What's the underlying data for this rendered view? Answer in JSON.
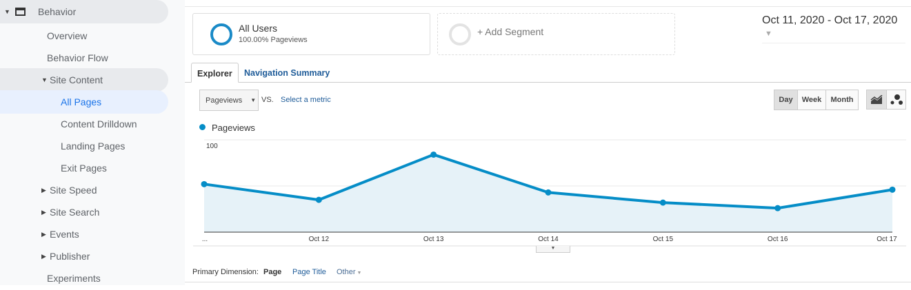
{
  "sidebar": {
    "section": "Behavior",
    "items": [
      {
        "label": "Overview"
      },
      {
        "label": "Behavior Flow"
      },
      {
        "label": "Site Content"
      },
      {
        "label": "All Pages"
      },
      {
        "label": "Content Drilldown"
      },
      {
        "label": "Landing Pages"
      },
      {
        "label": "Exit Pages"
      },
      {
        "label": "Site Speed"
      },
      {
        "label": "Site Search"
      },
      {
        "label": "Events"
      },
      {
        "label": "Publisher"
      },
      {
        "label": "Experiments"
      }
    ]
  },
  "segments": {
    "all_users": "All Users",
    "all_users_sub": "100.00% Pageviews",
    "add": "+ Add Segment"
  },
  "date_range": "Oct 11, 2020 - Oct 17, 2020",
  "tabs": [
    "Explorer",
    "Navigation Summary"
  ],
  "metric": {
    "selected": "Pageviews",
    "vs": "VS.",
    "select": "Select a metric"
  },
  "granularity": [
    "Day",
    "Week",
    "Month"
  ],
  "primary_dimension": {
    "label": "Primary Dimension:",
    "options": [
      "Page",
      "Page Title",
      "Other"
    ]
  },
  "colors": {
    "accent": "#058dc7",
    "link": "#1f5c99"
  },
  "chart_data": {
    "type": "area",
    "legend": "Pageviews",
    "x": [
      "...",
      "Oct 12",
      "Oct 13",
      "Oct 14",
      "Oct 15",
      "Oct 16",
      "Oct 17"
    ],
    "values": [
      52,
      35,
      84,
      43,
      32,
      26,
      46
    ],
    "yticks": [
      "100",
      "50"
    ],
    "ylim": [
      0,
      100
    ]
  }
}
